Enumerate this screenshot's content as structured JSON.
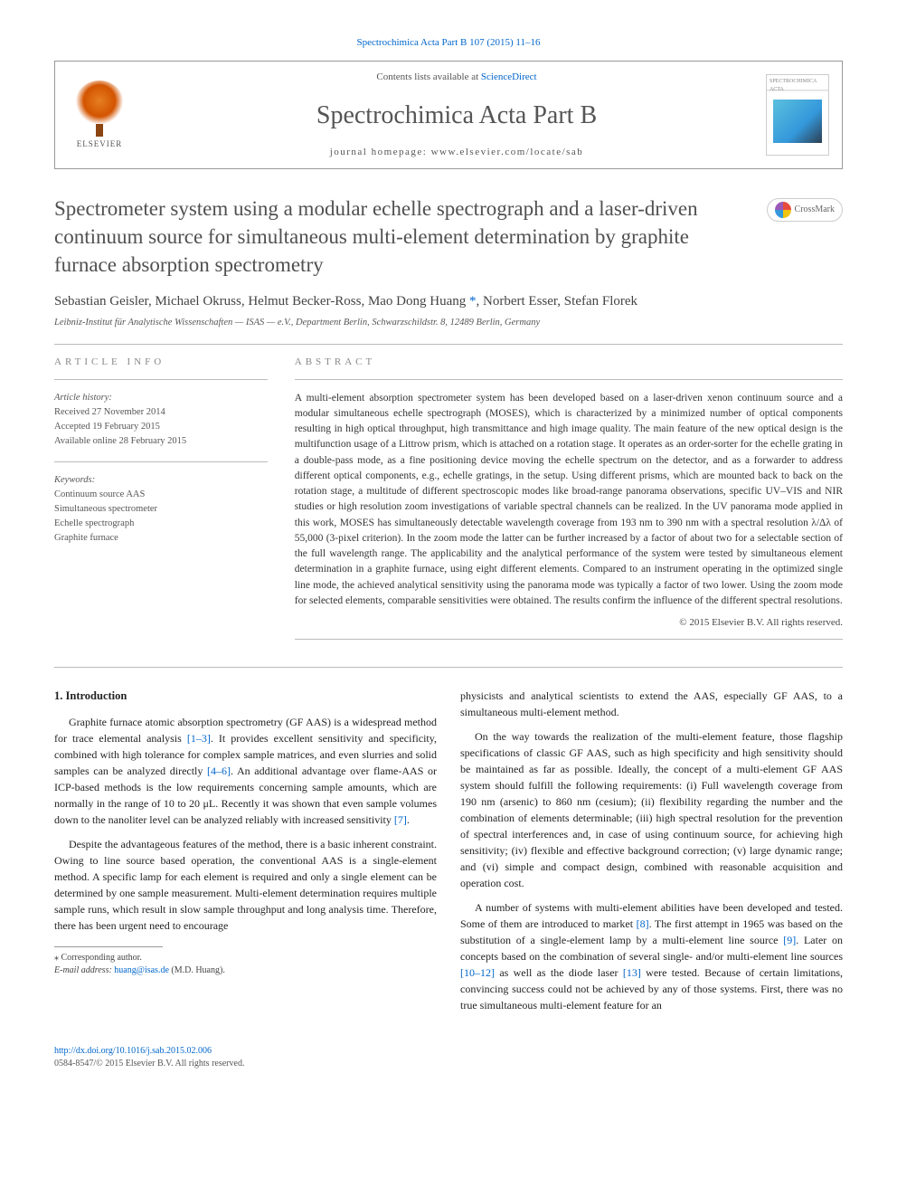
{
  "top_citation": "Spectrochimica Acta Part B 107 (2015) 11–16",
  "header": {
    "contents_prefix": "Contents lists available at ",
    "contents_link": "ScienceDirect",
    "journal_name": "Spectrochimica Acta Part B",
    "homepage_prefix": "journal homepage: ",
    "homepage_url": "www.elsevier.com/locate/sab",
    "publisher": "ELSEVIER",
    "cover_label": "SPECTROCHIMICA ACTA"
  },
  "article": {
    "title": "Spectrometer system using a modular echelle spectrograph and a laser-driven continuum source for simultaneous multi-element determination by graphite furnace absorption spectrometry",
    "crossmark": "CrossMark",
    "authors_pre": "Sebastian Geisler, Michael Okruss, Helmut Becker-Ross, Mao Dong Huang ",
    "authors_post": ", Norbert Esser, Stefan Florek",
    "affiliation": "Leibniz-Institut für Analytische Wissenschaften — ISAS — e.V., Department Berlin, Schwarzschildstr. 8, 12489 Berlin, Germany"
  },
  "info": {
    "section_label": "ARTICLE INFO",
    "history_label": "Article history:",
    "received": "Received 27 November 2014",
    "accepted": "Accepted 19 February 2015",
    "online": "Available online 28 February 2015",
    "keywords_label": "Keywords:",
    "kw1": "Continuum source AAS",
    "kw2": "Simultaneous spectrometer",
    "kw3": "Echelle spectrograph",
    "kw4": "Graphite furnace"
  },
  "abstract": {
    "section_label": "ABSTRACT",
    "text": "A multi-element absorption spectrometer system has been developed based on a laser-driven xenon continuum source and a modular simultaneous echelle spectrograph (MOSES), which is characterized by a minimized number of optical components resulting in high optical throughput, high transmittance and high image quality. The main feature of the new optical design is the multifunction usage of a Littrow prism, which is attached on a rotation stage. It operates as an order-sorter for the echelle grating in a double-pass mode, as a fine positioning device moving the echelle spectrum on the detector, and as a forwarder to address different optical components, e.g., echelle gratings, in the setup. Using different prisms, which are mounted back to back on the rotation stage, a multitude of different spectroscopic modes like broad-range panorama observations, specific UV–VIS and NIR studies or high resolution zoom investigations of variable spectral channels can be realized. In the UV panorama mode applied in this work, MOSES has simultaneously detectable wavelength coverage from 193 nm to 390 nm with a spectral resolution λ/Δλ of 55,000 (3-pixel criterion). In the zoom mode the latter can be further increased by a factor of about two for a selectable section of the full wavelength range. The applicability and the analytical performance of the system were tested by simultaneous element determination in a graphite furnace, using eight different elements. Compared to an instrument operating in the optimized single line mode, the achieved analytical sensitivity using the panorama mode was typically a factor of two lower. Using the zoom mode for selected elements, comparable sensitivities were obtained. The results confirm the influence of the different spectral resolutions.",
    "copyright": "© 2015 Elsevier B.V. All rights reserved."
  },
  "body": {
    "intro_heading": "1. Introduction",
    "p1a": "Graphite furnace atomic absorption spectrometry (GF AAS) is a widespread method for trace elemental analysis ",
    "r1": "[1–3]",
    "p1b": ". It provides excellent sensitivity and specificity, combined with high tolerance for complex sample matrices, and even slurries and solid samples can be analyzed directly ",
    "r2": "[4–6]",
    "p1c": ". An additional advantage over flame-AAS or ICP-based methods is the low requirements concerning sample amounts, which are normally in the range of 10 to 20 μL. Recently it was shown that even sample volumes down to the nanoliter level can be analyzed reliably with increased sensitivity ",
    "r3": "[7]",
    "p1d": ".",
    "p2": "Despite the advantageous features of the method, there is a basic inherent constraint. Owing to line source based operation, the conventional AAS is a single-element method. A specific lamp for each element is required and only a single element can be determined by one sample measurement. Multi-element determination requires multiple sample runs, which result in slow sample throughput and long analysis time. Therefore, there has been urgent need to encourage",
    "p3": "physicists and analytical scientists to extend the AAS, especially GF AAS, to a simultaneous multi-element method.",
    "p4": "On the way towards the realization of the multi-element feature, those flagship specifications of classic GF AAS, such as high specificity and high sensitivity should be maintained as far as possible. Ideally, the concept of a multi-element GF AAS system should fulfill the following requirements: (i) Full wavelength coverage from 190 nm (arsenic) to 860 nm (cesium); (ii) flexibility regarding the number and the combination of elements determinable; (iii) high spectral resolution for the prevention of spectral interferences and, in case of using continuum source, for achieving high sensitivity; (iv) flexible and effective background correction; (v) large dynamic range; and (vi) simple and compact design, combined with reasonable acquisition and operation cost.",
    "p5a": "A number of systems with multi-element abilities have been developed and tested. Some of them are introduced to market ",
    "r4": "[8]",
    "p5b": ". The first attempt in 1965 was based on the substitution of a single-element lamp by a multi-element line source ",
    "r5": "[9]",
    "p5c": ". Later on concepts based on the combination of several single- and/or multi-element line sources ",
    "r6": "[10–12]",
    "p5d": " as well as the diode laser ",
    "r7": "[13]",
    "p5e": " were tested. Because of certain limitations, convincing success could not be achieved by any of those systems. First, there was no true simultaneous multi-element feature for an"
  },
  "footnote": {
    "corr_label": "⁎ Corresponding author.",
    "email_label": "E-mail address: ",
    "email": "huang@isas.de",
    "email_suffix": " (M.D. Huang)."
  },
  "footer": {
    "doi": "http://dx.doi.org/10.1016/j.sab.2015.02.006",
    "issn": "0584-8547/© 2015 Elsevier B.V. All rights reserved."
  }
}
